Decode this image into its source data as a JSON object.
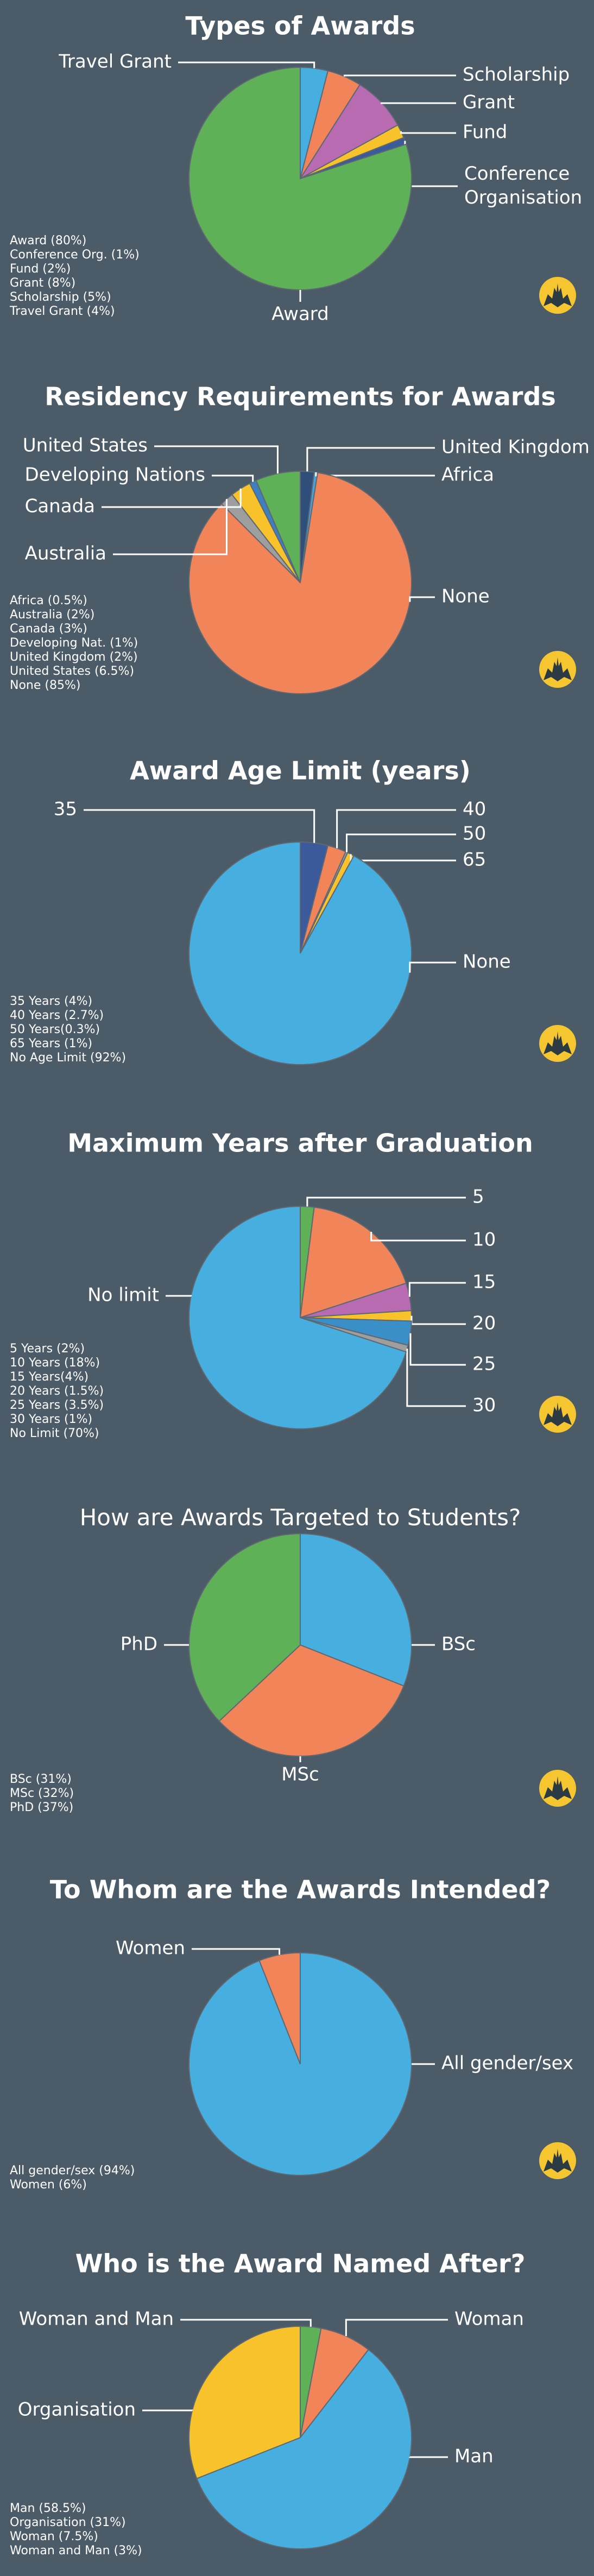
{
  "chart_data": [
    {
      "type": "pie",
      "title": "Types of Awards",
      "categories": [
        "Travel Grant",
        "Scholarship",
        "Grant",
        "Fund",
        "Conference Organisation",
        "Award"
      ],
      "values": [
        4,
        5,
        8,
        2,
        1,
        80
      ],
      "colors": [
        "#47aee0",
        "#f2845a",
        "#b86bb0",
        "#f8c22a",
        "#3a5a9c",
        "#5fb157"
      ],
      "legend": [
        "Award (80%)",
        "Conference Org. (1%)",
        "Fund (2%)",
        "Grant (8%)",
        "Scholarship (5%)",
        "Travel Grant (4%)"
      ]
    },
    {
      "type": "pie",
      "title": "Residency Requirements for Awards",
      "categories": [
        "United Kingdom",
        "Africa",
        "None",
        "Australia",
        "Canada",
        "Developing Nations",
        "United States"
      ],
      "values": [
        2,
        0.5,
        85,
        2,
        3,
        1,
        6.5
      ],
      "colors": [
        "#2f4f7a",
        "#4aa3d8",
        "#f2845a",
        "#9e9e9e",
        "#f8c22a",
        "#3d7fc0",
        "#5fb157"
      ],
      "legend": [
        "Africa (0.5%)",
        "Australia (2%)",
        "Canada (3%)",
        "Developing Nat. (1%)",
        "United Kingdom (2%)",
        "United States (6.5%)",
        "None (85%)"
      ]
    },
    {
      "type": "pie",
      "title": "Award Age Limit (years)",
      "categories": [
        "35",
        "40",
        "50",
        "65",
        "None"
      ],
      "values": [
        4,
        2.7,
        0.3,
        1,
        92
      ],
      "colors": [
        "#3a5a9c",
        "#f2845a",
        "#9e9e9e",
        "#f8c22a",
        "#47aee0"
      ],
      "legend": [
        "35 Years (4%)",
        "40 Years (2.7%)",
        "50 Years(0.3%)",
        "65 Years (1%)",
        "No Age Limit (92%)"
      ]
    },
    {
      "type": "pie",
      "title": "Maximum Years after Graduation",
      "categories": [
        "5",
        "10",
        "15",
        "20",
        "25",
        "30",
        "No limit"
      ],
      "values": [
        2,
        18,
        4,
        1.5,
        3.5,
        1,
        70
      ],
      "colors": [
        "#5fb157",
        "#f2845a",
        "#b86bb0",
        "#f8c22a",
        "#3b8fc9",
        "#9e9e9e",
        "#47aee0"
      ],
      "legend": [
        "5 Years (2%)",
        "10 Years (18%)",
        "15 Years(4%)",
        "20 Years (1.5%)",
        "25 Years (3.5%)",
        "30 Years (1%)",
        "No Limit (70%)"
      ]
    },
    {
      "type": "pie",
      "title": "How are Awards Targeted to Students?",
      "categories": [
        "BSc",
        "MSc",
        "PhD"
      ],
      "values": [
        31,
        32,
        37
      ],
      "colors": [
        "#47aee0",
        "#f2845a",
        "#5fb157"
      ],
      "legend": [
        "BSc (31%)",
        "MSc (32%)",
        "PhD (37%)"
      ]
    },
    {
      "type": "pie",
      "title": "To Whom are the Awards Intended?",
      "categories": [
        "All gender/sex",
        "Women"
      ],
      "values": [
        94,
        6
      ],
      "colors": [
        "#47aee0",
        "#f2845a"
      ],
      "legend": [
        "All gender/sex (94%)",
        "Women (6%)"
      ]
    },
    {
      "type": "pie",
      "title": "Who is the Award Named After?",
      "categories": [
        "Woman and Man",
        "Woman",
        "Man",
        "Organisation"
      ],
      "values": [
        3,
        7.5,
        58.5,
        31
      ],
      "colors": [
        "#5fb157",
        "#f2845a",
        "#47aee0",
        "#f8c22a"
      ],
      "legend": [
        "Man (58.5%)",
        "Organisation (31%)",
        "Woman (7.5%)",
        "Woman and Man (3%)"
      ]
    }
  ]
}
